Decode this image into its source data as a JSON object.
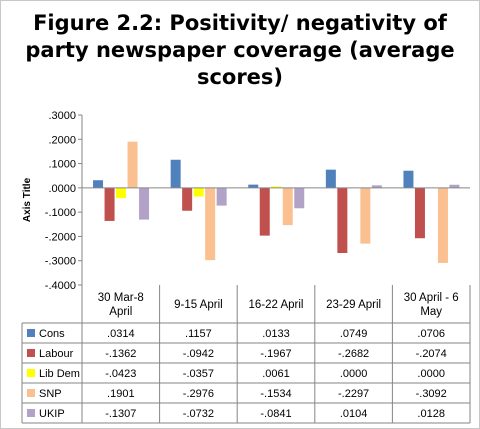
{
  "chart_data": {
    "type": "bar",
    "title": "Figure 2.2: Positivity/ negativity of party newspaper coverage (average scores)",
    "title_lines": [
      "Figure 2.2: Positivity/ negativity of",
      "party newspaper coverage (average",
      "scores)"
    ],
    "ylabel": "Axis Title",
    "ylim": [
      -0.4,
      0.3
    ],
    "y_ticks": [
      ".3000",
      ".2000",
      ".1000",
      ".0000",
      "-.1000",
      "-.2000",
      "-.3000",
      "-.4000"
    ],
    "y_tick_values": [
      0.3,
      0.2,
      0.1,
      0.0,
      -0.1,
      -0.2,
      -0.3,
      -0.4
    ],
    "categories": [
      "30 Mar-8 April",
      "9-15 April",
      "16-22 April",
      "23-29 April",
      "30 April - 6 May"
    ],
    "category_lines": [
      [
        "30 Mar-8",
        "April"
      ],
      [
        "9-15 April"
      ],
      [
        "16-22 April"
      ],
      [
        "23-29 April"
      ],
      [
        "30 April - 6",
        "May"
      ]
    ],
    "series": [
      {
        "name": "Cons",
        "color": "#4f81bd",
        "values": [
          0.0314,
          0.1157,
          0.0133,
          0.0749,
          0.0706
        ],
        "labels": [
          ".0314",
          ".1157",
          ".0133",
          ".0749",
          ".0706"
        ]
      },
      {
        "name": "Labour",
        "color": "#c0504d",
        "values": [
          -0.1362,
          -0.0942,
          -0.1967,
          -0.2682,
          -0.2074
        ],
        "labels": [
          "-.1362",
          "-.0942",
          "-.1967",
          "-.2682",
          "-.2074"
        ]
      },
      {
        "name": "Lib Dem",
        "color": "#ffff00",
        "values": [
          -0.0423,
          -0.0357,
          0.0061,
          0.0,
          0.0
        ],
        "labels": [
          "-.0423",
          "-.0357",
          ".0061",
          ".0000",
          ".0000"
        ]
      },
      {
        "name": "SNP",
        "color": "#fac090",
        "values": [
          0.1901,
          -0.2976,
          -0.1534,
          -0.2297,
          -0.3092
        ],
        "labels": [
          ".1901",
          "-.2976",
          "-.1534",
          "-.2297",
          "-.3092"
        ]
      },
      {
        "name": "UKIP",
        "color": "#b3a2c7",
        "values": [
          -0.1307,
          -0.0732,
          -0.0841,
          0.0104,
          0.0128
        ],
        "labels": [
          "-.1307",
          "-.0732",
          "-.0841",
          ".0104",
          ".0128"
        ]
      }
    ],
    "grid": false,
    "legend": "data table"
  }
}
